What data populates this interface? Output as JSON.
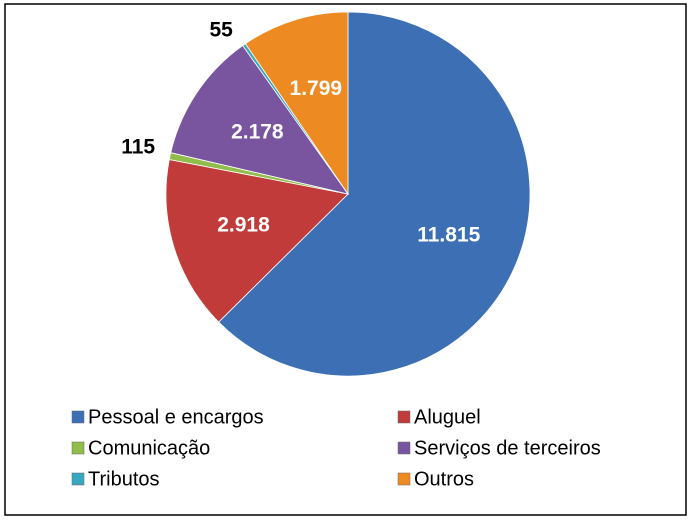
{
  "chart_data": {
    "type": "pie",
    "categories": [
      "Pessoal e encargos",
      "Aluguel",
      "Comunicação",
      "Serviços de terceiros",
      "Tributos",
      "Outros"
    ],
    "values": [
      11815,
      2918,
      115,
      2178,
      55,
      1799
    ],
    "value_labels": [
      "11.815",
      "2.918",
      "115",
      "2.178",
      "55",
      "1.799"
    ],
    "colors": [
      "#3d6fb4",
      "#c23b3b",
      "#90bd4b",
      "#7a559f",
      "#38a8c0",
      "#ee8a22"
    ],
    "legend": "bottom"
  }
}
